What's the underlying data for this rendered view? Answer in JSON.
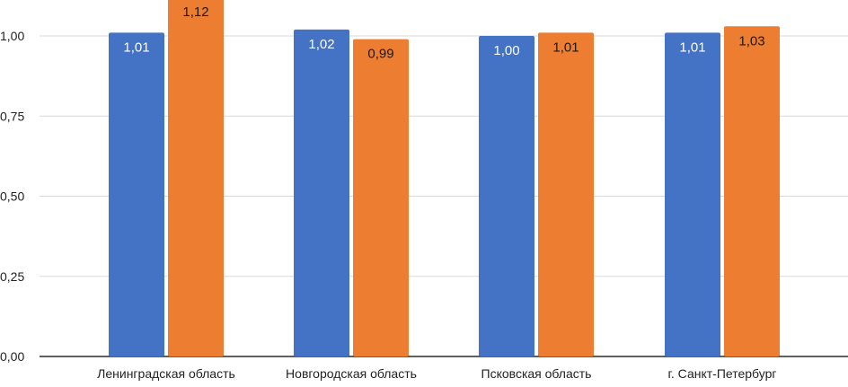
{
  "chart_data": {
    "type": "bar",
    "categories": [
      "Ленинградская область",
      "Новгородская область",
      "Псковская область",
      "г. Санкт-Петербург"
    ],
    "series": [
      {
        "color": "#4472C4",
        "values": [
          1.01,
          1.02,
          1.0,
          1.01
        ],
        "labels": [
          "1,01",
          "1,02",
          "1,00",
          "1,01"
        ]
      },
      {
        "color": "#ED7D31",
        "values": [
          1.12,
          0.99,
          1.01,
          1.03
        ],
        "labels": [
          "1,12",
          "0,99",
          "1,01",
          "1,03"
        ]
      }
    ],
    "ylim": [
      0,
      1.12
    ],
    "yticks": [
      0,
      0.25,
      0.5,
      0.75,
      1.0
    ],
    "ytick_labels": [
      "0,00",
      "0,25",
      "0,50",
      "0,75",
      "1,00"
    ],
    "grid": true,
    "legend": "none"
  }
}
